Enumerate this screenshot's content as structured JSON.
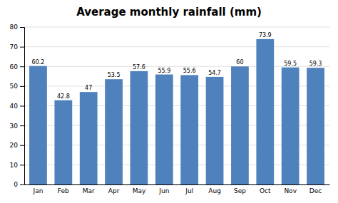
{
  "chart_data": {
    "type": "bar",
    "title": "Average monthly rainfall (mm)",
    "categories": [
      "Jan",
      "Feb",
      "Mar",
      "Apr",
      "May",
      "Jun",
      "Jul",
      "Aug",
      "Sep",
      "Oct",
      "Nov",
      "Dec"
    ],
    "values": [
      60.2,
      42.8,
      47.0,
      53.5,
      57.6,
      55.9,
      55.6,
      54.7,
      60.0,
      73.9,
      59.5,
      59.3
    ],
    "color": "#4F81BD",
    "ylim": [
      0,
      80
    ],
    "yticks": [
      0,
      10,
      20,
      30,
      40,
      50,
      60,
      70,
      80
    ],
    "grid": true,
    "data_labels": true
  }
}
